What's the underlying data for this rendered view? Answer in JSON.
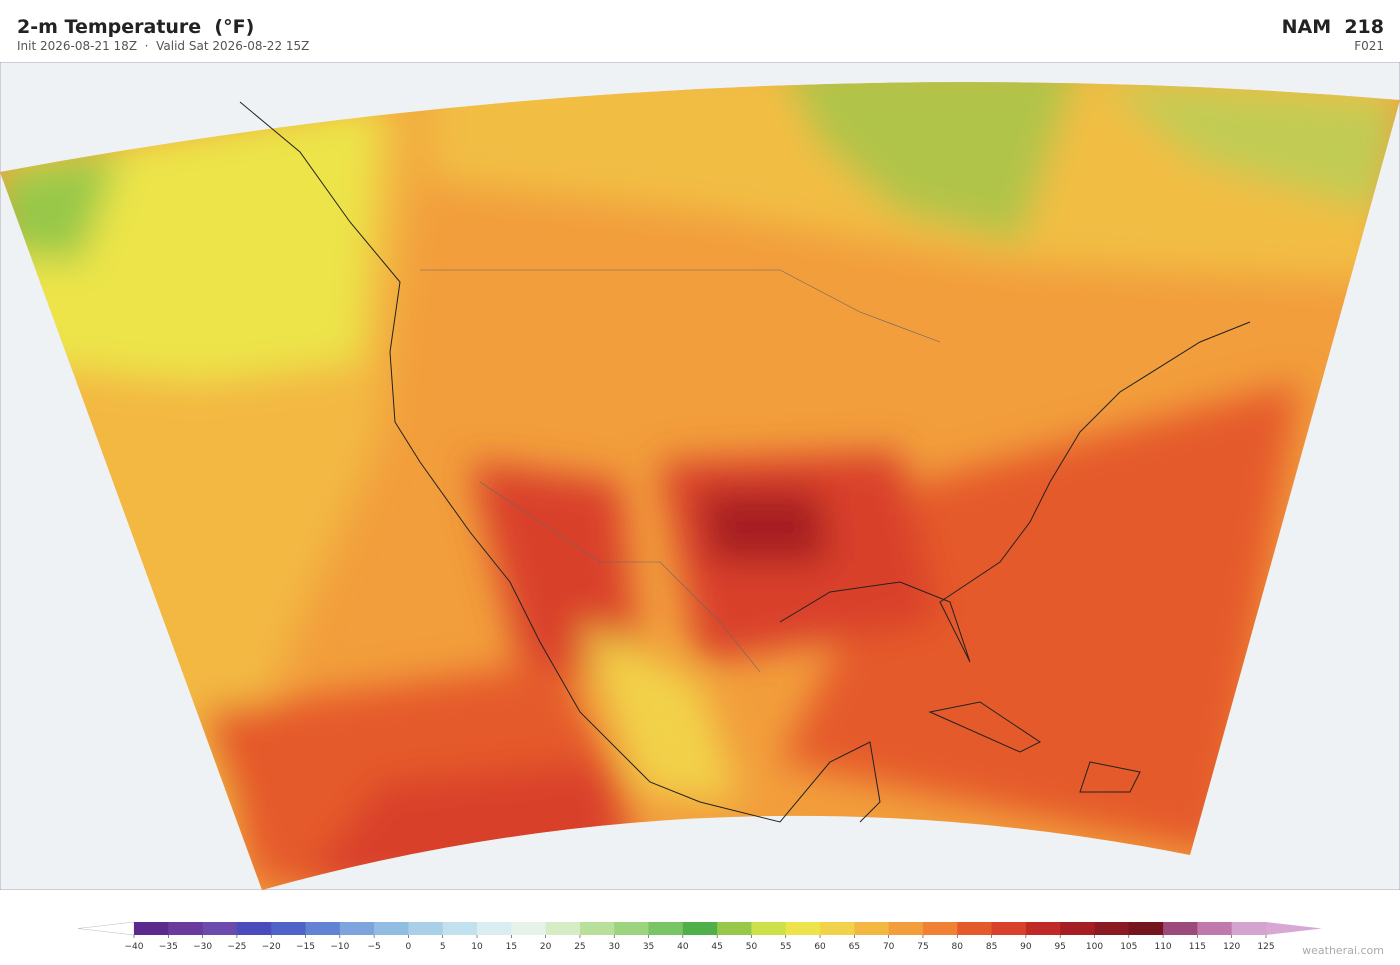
{
  "header": {
    "title": "2-m Temperature  (°F)",
    "subtitle": "Init 2026-08-21 18Z  ·  Valid Sat 2026-08-22 15Z",
    "model": "NAM  218",
    "forecast_hour": "F021"
  },
  "colorbar": {
    "ticks": [
      {
        "value": -40,
        "label": "−40"
      },
      {
        "value": -35,
        "label": "−35"
      },
      {
        "value": -30,
        "label": "−30"
      },
      {
        "value": -25,
        "label": "−25"
      },
      {
        "value": -20,
        "label": "−20"
      },
      {
        "value": -15,
        "label": "−15"
      },
      {
        "value": -10,
        "label": "−10"
      },
      {
        "value": -5,
        "label": "−5"
      },
      0,
      5,
      10,
      15,
      20,
      25,
      30,
      35,
      40,
      45,
      50,
      55,
      60,
      65,
      70,
      75,
      80,
      85,
      90,
      95,
      100,
      105,
      110,
      115,
      120,
      125
    ],
    "colors": [
      "#5b2a8c",
      "#6a3a9c",
      "#6d4aae",
      "#4b4cbc",
      "#4f62c8",
      "#6283d4",
      "#7fa3dc",
      "#92bde2",
      "#a9d0e8",
      "#c2e1ee",
      "#daeef2",
      "#e6f3ea",
      "#d5ecc4",
      "#b9e09a",
      "#9bd37e",
      "#79c465",
      "#4fb04a",
      "#97c84a",
      "#cde04a",
      "#ece44a",
      "#f2d24a",
      "#f3b842",
      "#f29e3c",
      "#ef8034",
      "#e55a2b",
      "#d9412a",
      "#c02a26",
      "#a51e24",
      "#8c1a22",
      "#75161f",
      "#9c4a7c",
      "#c079ac",
      "#d5a3cf"
    ],
    "under_color": "#ffffff",
    "over_color": "#d8a8d4"
  },
  "footer": {
    "watermark": "weatherai.com"
  }
}
